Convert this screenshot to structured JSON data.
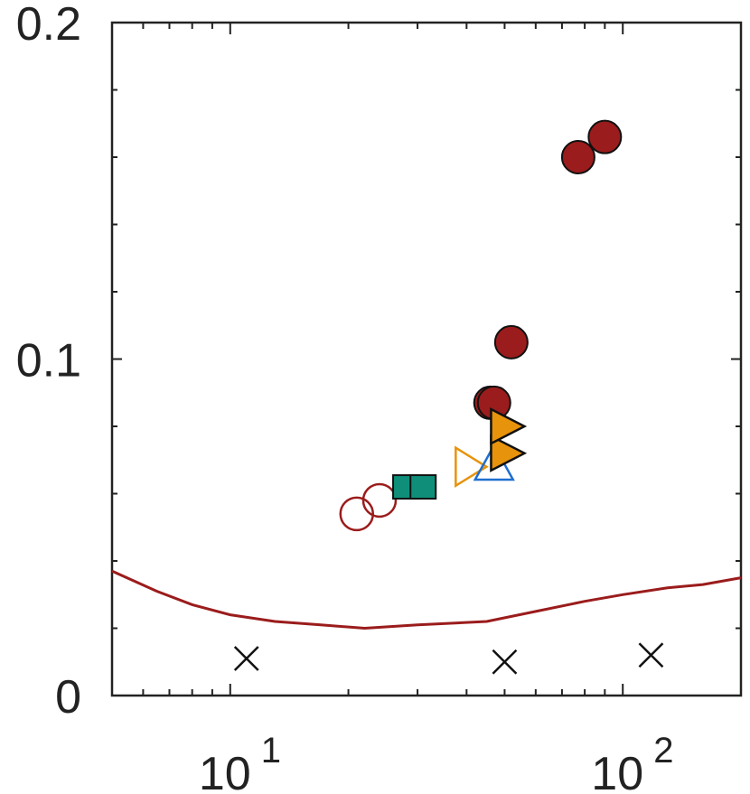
{
  "chart_data": {
    "type": "scatter",
    "title": "",
    "xlabel": "",
    "ylabel": "",
    "x_scale": "log",
    "xlim": [
      5,
      200
    ],
    "ylim": [
      0,
      0.2
    ],
    "grid": false,
    "y_ticks": [
      {
        "value": 0,
        "label": "0"
      },
      {
        "value": 0.1,
        "label": "0.1"
      },
      {
        "value": 0.2,
        "label": "0.2"
      }
    ],
    "x_ticks": [
      {
        "value": 10,
        "base": "10",
        "exp": "1"
      },
      {
        "value": 100,
        "base": "10",
        "exp": "2"
      }
    ],
    "series": [
      {
        "marker": "circle-filled",
        "color": "#9b1c1c",
        "points": [
          [
            77,
            0.16
          ],
          [
            90,
            0.166
          ],
          [
            52,
            0.105
          ],
          [
            46,
            0.087
          ],
          [
            47,
            0.087
          ]
        ]
      },
      {
        "marker": "circle-open",
        "color": "#9b1c1c",
        "points": [
          [
            21,
            0.054
          ],
          [
            24,
            0.058
          ]
        ]
      },
      {
        "marker": "square-filled",
        "color": "#0f8f7a",
        "points": [
          [
            28,
            0.062
          ],
          [
            31,
            0.062
          ]
        ]
      },
      {
        "marker": "triangle-right-open",
        "color": "#e8930c",
        "points": [
          [
            40,
            0.068
          ]
        ]
      },
      {
        "marker": "triangle-up-open",
        "color": "#1f6fd0",
        "points": [
          [
            47,
            0.069
          ]
        ]
      },
      {
        "marker": "triangle-right-filled",
        "color": "#e8930c",
        "points": [
          [
            50,
            0.072
          ],
          [
            50,
            0.08
          ]
        ]
      },
      {
        "marker": "cross",
        "color": "#111111",
        "points": [
          [
            11,
            0.011
          ],
          [
            50,
            0.01
          ],
          [
            118,
            0.012
          ]
        ]
      }
    ],
    "line": {
      "color": "#9b1c1c",
      "points": [
        [
          5,
          0.037
        ],
        [
          6.5,
          0.031
        ],
        [
          8,
          0.027
        ],
        [
          10,
          0.024
        ],
        [
          13,
          0.022
        ],
        [
          17,
          0.021
        ],
        [
          22,
          0.02
        ],
        [
          30,
          0.021
        ],
        [
          45,
          0.022
        ],
        [
          60,
          0.025
        ],
        [
          80,
          0.028
        ],
        [
          100,
          0.03
        ],
        [
          130,
          0.032
        ],
        [
          160,
          0.033
        ],
        [
          200,
          0.035
        ]
      ]
    }
  }
}
